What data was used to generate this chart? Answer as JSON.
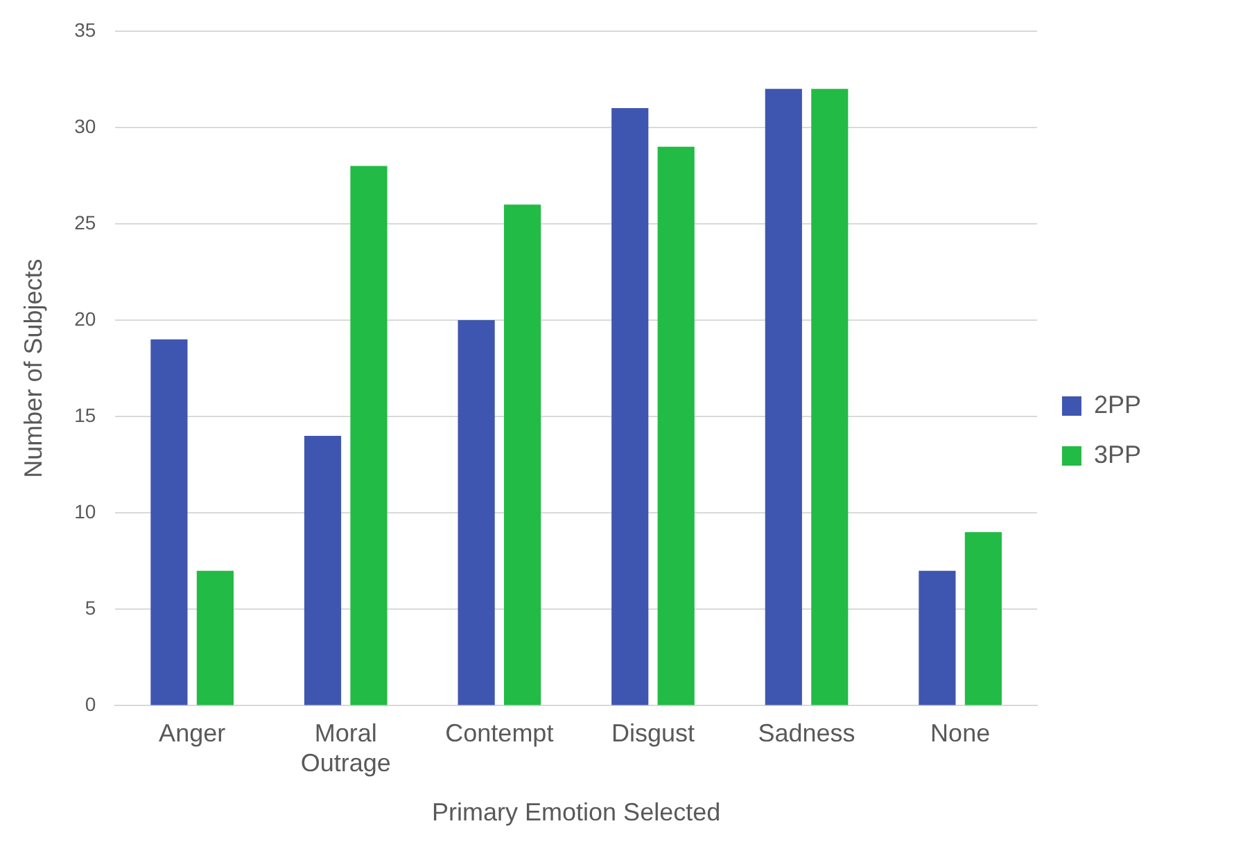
{
  "chart_data": {
    "type": "bar",
    "xlabel": "Primary Emotion Selected",
    "ylabel": "Number of Subjects",
    "categories": [
      "Anger",
      "Moral Outrage",
      "Contempt",
      "Disgust",
      "Sadness",
      "None"
    ],
    "series": [
      {
        "name": "2PP",
        "color": "#3f56b0",
        "values": [
          19,
          14,
          20,
          31,
          32,
          7
        ]
      },
      {
        "name": "3PP",
        "color": "#22bb45",
        "values": [
          7,
          28,
          26,
          29,
          32,
          9
        ]
      }
    ],
    "ylim": [
      0,
      35
    ],
    "yticks": [
      0,
      5,
      10,
      15,
      20,
      25,
      30,
      35
    ],
    "grid": "y",
    "legend": "right"
  }
}
